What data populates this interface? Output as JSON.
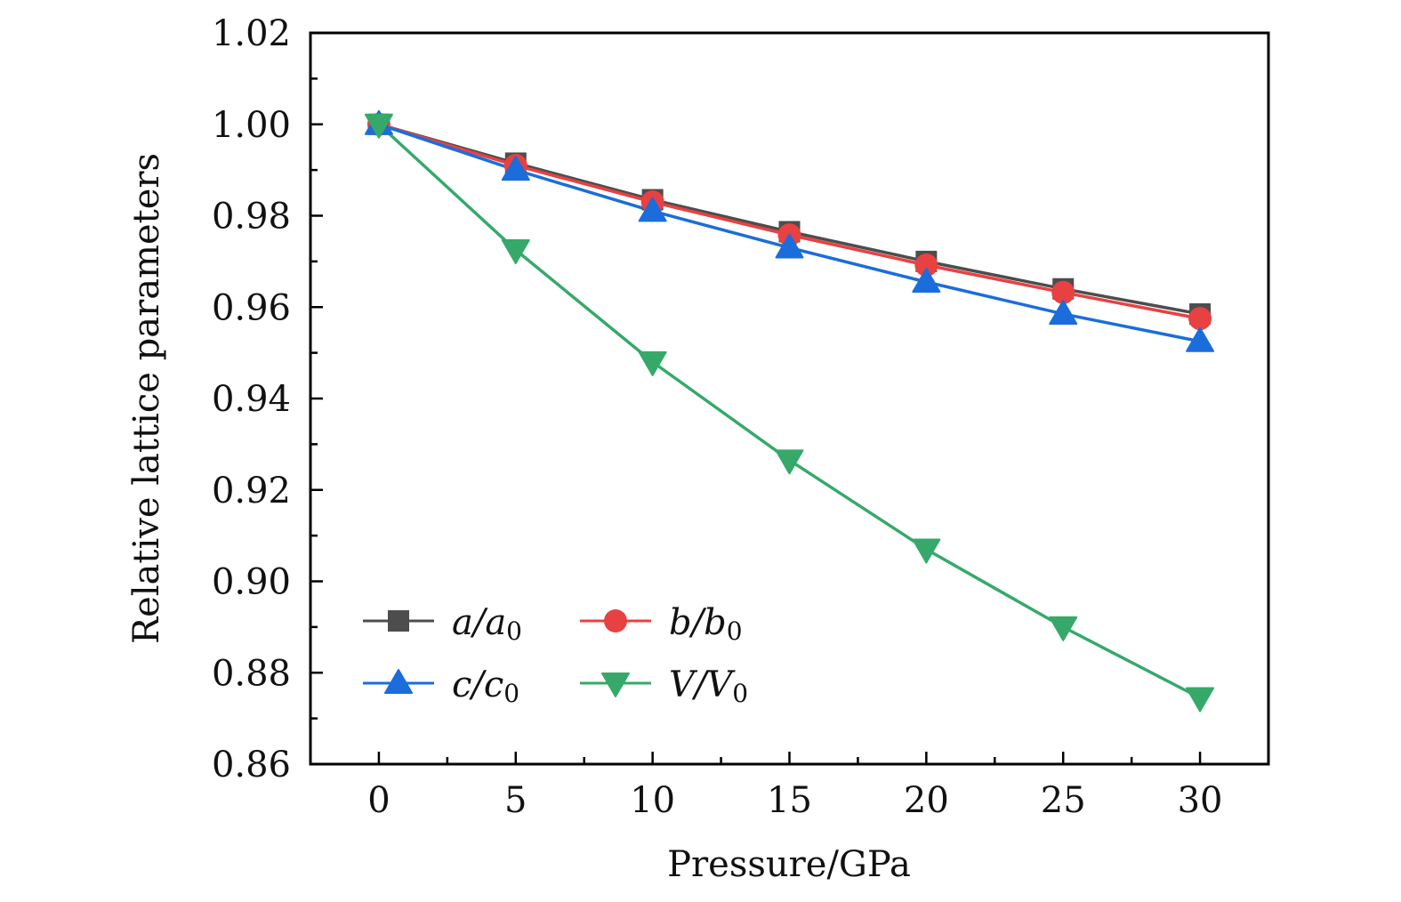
{
  "chart_data": {
    "type": "line",
    "title": "",
    "xlabel": "Pressure/GPa",
    "ylabel": "Relative lattice parameters",
    "x": [
      0,
      5,
      10,
      15,
      20,
      25,
      30
    ],
    "xlim": [
      -2.5,
      32.5
    ],
    "ylim": [
      0.86,
      1.02
    ],
    "xticks": [
      0,
      5,
      10,
      15,
      20,
      25,
      30
    ],
    "xtick_labels": [
      "0",
      "5",
      "10",
      "15",
      "20",
      "25",
      "30"
    ],
    "yticks": [
      0.86,
      0.88,
      0.9,
      0.92,
      0.94,
      0.96,
      0.98,
      1.0,
      1.02
    ],
    "ytick_labels": [
      "0.86",
      "0.88",
      "0.90",
      "0.92",
      "0.94",
      "0.96",
      "0.98",
      "1.00",
      "1.02"
    ],
    "grid": false,
    "legend_position": "bottom-left",
    "series": [
      {
        "name": "a/a0",
        "label_main": "a/a",
        "label_sub": "0",
        "marker": "square",
        "color": "#4d4d4d",
        "values": [
          1.0,
          0.9915,
          0.9835,
          0.9765,
          0.97,
          0.964,
          0.9585
        ]
      },
      {
        "name": "b/b0",
        "label_main": "b/b",
        "label_sub": "0",
        "marker": "circle",
        "color": "#e84142",
        "values": [
          1.0,
          0.991,
          0.983,
          0.9758,
          0.9692,
          0.9632,
          0.9575
        ]
      },
      {
        "name": "c/c0",
        "label_main": "c/c",
        "label_sub": "0",
        "marker": "triangle-up",
        "color": "#1b6ddb",
        "values": [
          1.0,
          0.99,
          0.981,
          0.973,
          0.9655,
          0.9585,
          0.9525
        ]
      },
      {
        "name": "V/V0",
        "label_main": "V/V",
        "label_sub": "0",
        "marker": "triangle-down",
        "color": "#36a96a",
        "values": [
          1.0,
          0.9725,
          0.948,
          0.9265,
          0.907,
          0.89,
          0.8745
        ]
      }
    ]
  }
}
